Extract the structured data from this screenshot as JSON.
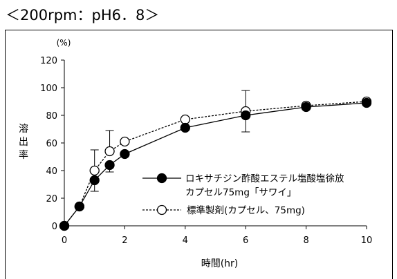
{
  "page_title": "＜200rpm：pH6．8＞",
  "chart_data": {
    "type": "line",
    "title": "",
    "ylabel_unit": "(%)",
    "ylabel": "溶出率",
    "xlabel": "時間(hr)",
    "xlim": [
      0,
      10
    ],
    "ylim": [
      0,
      120
    ],
    "x_ticks": [
      0,
      2,
      4,
      6,
      8,
      10
    ],
    "y_ticks": [
      0,
      20,
      40,
      60,
      80,
      100,
      120
    ],
    "grid": false,
    "legend_position": "bottom-right",
    "series": [
      {
        "name": "ロキサチジン酢酸エステル塩酸塩徐放カプセル75mg「サワイ」",
        "legend_lines": [
          "ロキサチジン酢酸エステル塩酸塩徐放",
          "カプセル75mg「サワイ」"
        ],
        "marker": "filled-circle",
        "line_style": "solid",
        "color": "#000000",
        "x": [
          0,
          0.5,
          1,
          1.5,
          2,
          4,
          6,
          8,
          10
        ],
        "y": [
          0,
          14,
          33,
          44,
          52,
          71,
          80,
          86,
          89
        ],
        "error_low": [
          0,
          0,
          25,
          39,
          0,
          0,
          68,
          0,
          0
        ],
        "error_high": [
          0,
          0,
          0,
          0,
          0,
          0,
          0,
          0,
          0
        ]
      },
      {
        "name": "標準製剤(カプセル、75mg)",
        "legend_lines": [
          "標準製剤(カプセル、75mg)"
        ],
        "marker": "open-circle",
        "line_style": "dashed",
        "color": "#000000",
        "x": [
          0,
          0.5,
          1,
          1.5,
          2,
          4,
          6,
          8,
          10
        ],
        "y": [
          0,
          14,
          40,
          54,
          61,
          77,
          83,
          87,
          90
        ],
        "error_low": [
          0,
          0,
          0,
          0,
          0,
          0,
          0,
          0,
          0
        ],
        "error_high": [
          0,
          0,
          55,
          69,
          0,
          0,
          98,
          0,
          0
        ]
      }
    ]
  }
}
